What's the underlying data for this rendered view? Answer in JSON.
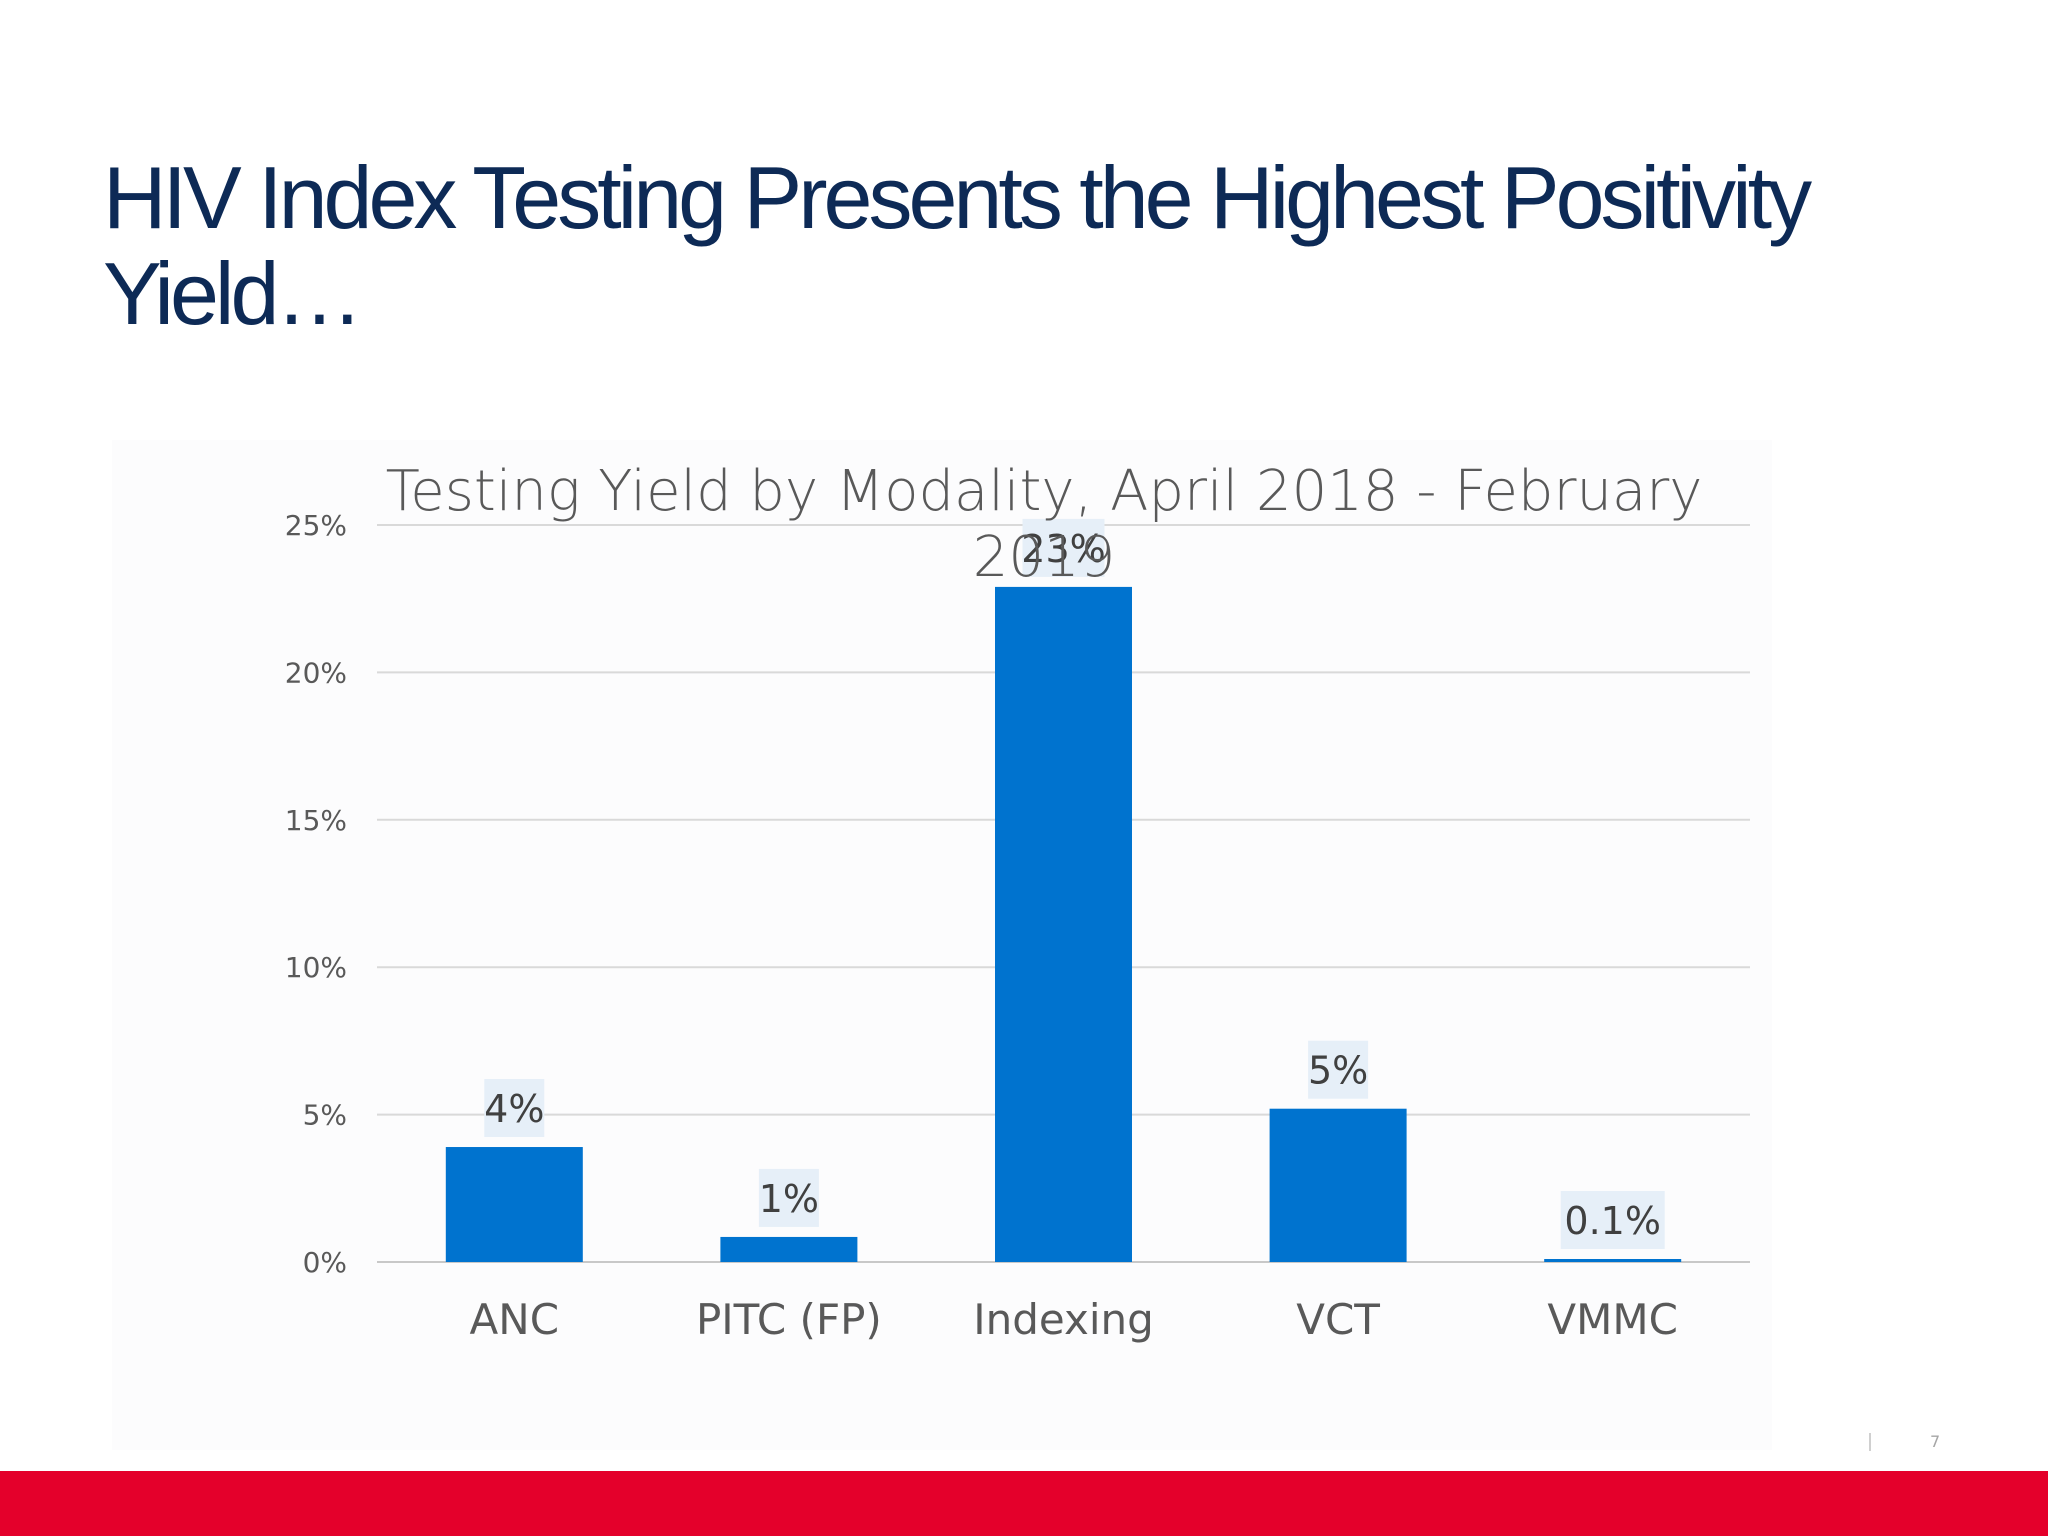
{
  "slide": {
    "title": "HIV Index Testing Presents the Highest Positivity Yield…",
    "page_number": "7",
    "footer_color": "#e4002b",
    "title_color": "#0d2a56"
  },
  "chart_data": {
    "type": "bar",
    "title_lines": [
      "Testing Yield by Modality, April 2018 - February",
      "2019"
    ],
    "categories": [
      "ANC",
      "PITC (FP)",
      "Indexing",
      "VCT",
      "VMMC"
    ],
    "values": [
      3.9,
      0.85,
      22.9,
      5.2,
      0.1
    ],
    "data_labels": [
      "4%",
      "1%",
      "23%",
      "5%",
      "0.1%"
    ],
    "ylim": [
      0,
      25
    ],
    "yticks": [
      0,
      5,
      10,
      15,
      20,
      25
    ],
    "ytick_labels": [
      "0%",
      "5%",
      "10%",
      "15%",
      "20%",
      "25%"
    ],
    "xlabel": "",
    "ylabel": "",
    "grid": true,
    "bar_color": "#0073cf",
    "label_background": "#e6eff8"
  }
}
